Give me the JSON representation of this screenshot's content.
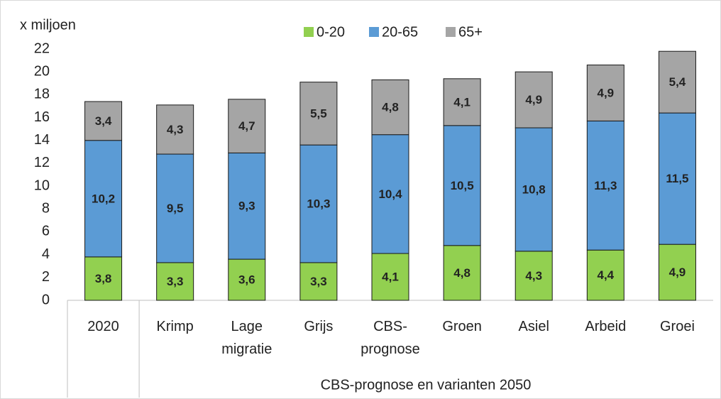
{
  "chart_data": {
    "type": "stacked_bar",
    "y_axis_label": "x miljoen",
    "x_group_label": "CBS-prognose en varianten 2050",
    "categories": [
      "2020",
      "Krimp",
      "Lage migratie",
      "Grijs",
      "CBS-prognose",
      "Groen",
      "Asiel",
      "Arbeid",
      "Groei"
    ],
    "series": [
      {
        "name": "0-20",
        "color": "#92d050",
        "values": [
          3.8,
          3.3,
          3.6,
          3.3,
          4.1,
          4.8,
          4.3,
          4.4,
          4.9
        ],
        "value_labels": [
          "3,8",
          "3,3",
          "3,6",
          "3,3",
          "4,1",
          "4,8",
          "4,3",
          "4,4",
          "4,9"
        ]
      },
      {
        "name": "20-65",
        "color": "#5b9bd5",
        "values": [
          10.2,
          9.5,
          9.3,
          10.3,
          10.4,
          10.5,
          10.8,
          11.3,
          11.5
        ],
        "value_labels": [
          "10,2",
          "9,5",
          "9,3",
          "10,3",
          "10,4",
          "10,5",
          "10,8",
          "11,3",
          "11,5"
        ]
      },
      {
        "name": "65+",
        "color": "#a5a5a5",
        "values": [
          3.4,
          4.3,
          4.7,
          5.5,
          4.8,
          4.1,
          4.9,
          4.9,
          5.4
        ],
        "value_labels": [
          "3,4",
          "4,3",
          "4,7",
          "5,5",
          "4,8",
          "4,1",
          "4,9",
          "4,9",
          "5,4"
        ]
      }
    ],
    "ylim": [
      0,
      22
    ],
    "yticks": [
      0,
      2,
      4,
      6,
      8,
      10,
      12,
      14,
      16,
      18,
      20,
      22
    ],
    "legend": "top",
    "grid": false
  }
}
